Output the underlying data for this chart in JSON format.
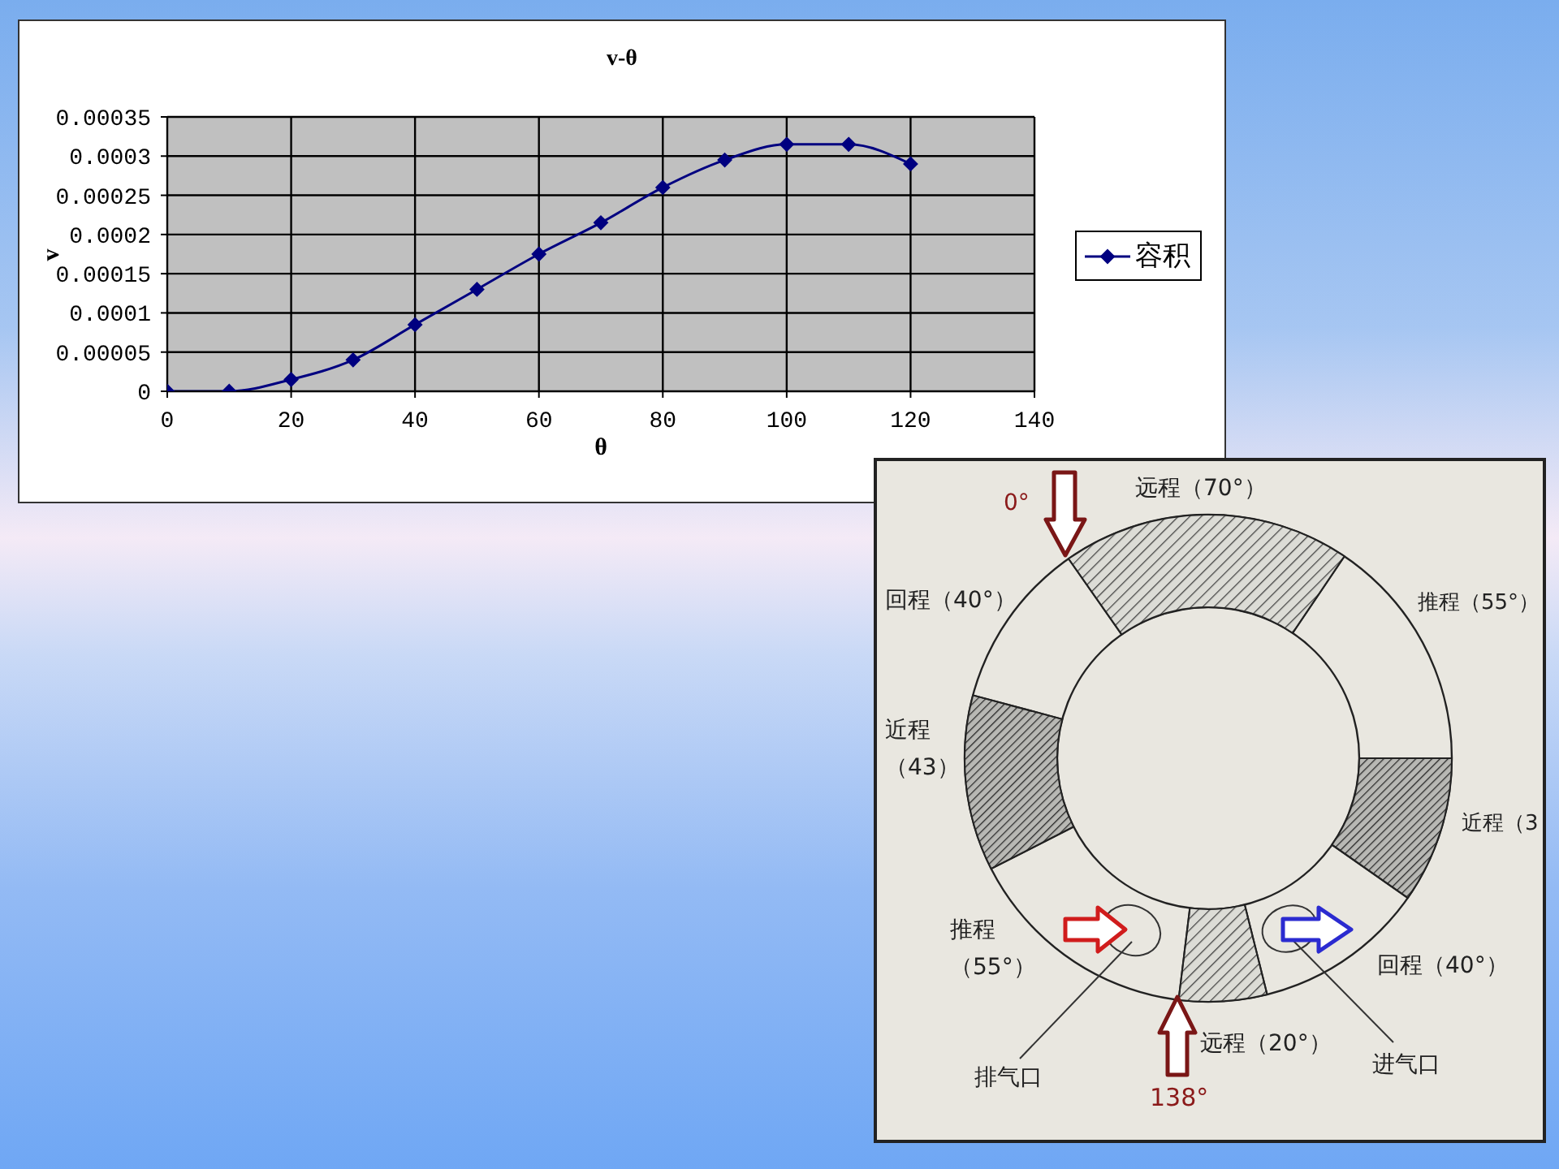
{
  "chart_data": [
    {
      "type": "line",
      "title": "v-θ",
      "xlabel": "θ",
      "ylabel": "v",
      "x": [
        0,
        10,
        20,
        30,
        40,
        50,
        60,
        70,
        80,
        90,
        100,
        110,
        120
      ],
      "series": [
        {
          "name": "容积",
          "color": "#000080",
          "values": [
            0,
            0,
            1.5e-05,
            4e-05,
            8.5e-05,
            0.00013,
            0.000175,
            0.000215,
            0.00026,
            0.000295,
            0.000315,
            0.000315,
            0.00029
          ]
        }
      ],
      "xlim": [
        0,
        140
      ],
      "xticks": [
        0,
        20,
        40,
        60,
        80,
        100,
        120,
        140
      ],
      "ylim": [
        0,
        0.00035
      ],
      "yticks": [
        0,
        {
          "value": 5e-05,
          "label": "0.00005"
        },
        0.0001,
        0.00015,
        0.0002,
        0.00025,
        0.0003,
        0.00035
      ],
      "grid": true,
      "legend": "right",
      "marker": "diamond"
    },
    {
      "type": "other",
      "annotations": [
        "0°",
        "远程（70°）",
        "回程（40°）",
        "推程（55°）",
        "近程（43）",
        "近程（3",
        "推程（55°）",
        "回程（40°）",
        "远程（20°）",
        "排气口",
        "进气口",
        "138°"
      ]
    }
  ]
}
